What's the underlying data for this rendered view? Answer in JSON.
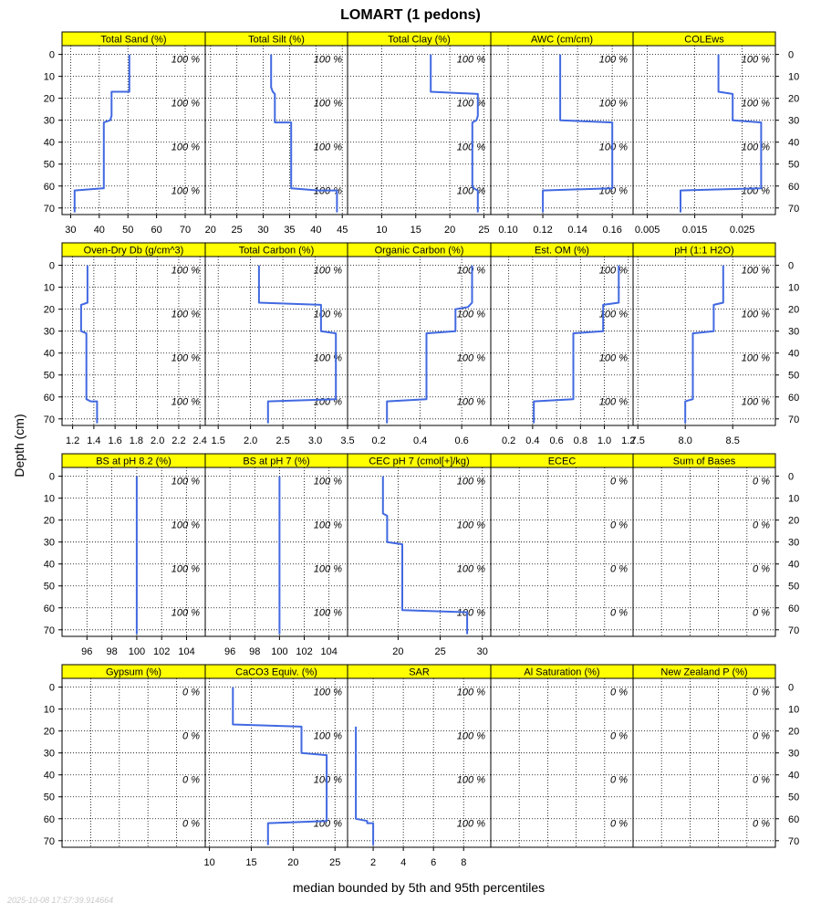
{
  "title": "LOMART (1 pedons)",
  "xlabel": "median bounded by 5th and 95th percentiles",
  "ylabel": "Depth (cm)",
  "timestamp": "2025-10-08 17:57:39.914664",
  "colors": {
    "strip": "#ffff00",
    "line": "#4169e1",
    "grid": "#000000",
    "text": "#000000",
    "timestamp": "#c8c8c8"
  },
  "chart_data": {
    "type": "line",
    "orientation": "depth profile",
    "y_axis": {
      "label": "Depth (cm)",
      "ticks": [
        0,
        10,
        20,
        30,
        40,
        50,
        60,
        70
      ],
      "range": [
        -4,
        73
      ],
      "reversed": true
    },
    "grid": true,
    "panels": [
      {
        "name": "Total Sand (%)",
        "xlim": [
          27,
          77
        ],
        "xticks": [
          30,
          40,
          50,
          60,
          70
        ],
        "tick_labels": [
          "30",
          "40",
          "50",
          "60",
          "70"
        ],
        "pct_label": "100 %",
        "pct_depths": [
          2,
          22,
          42,
          62
        ],
        "profile": [
          [
            50.5,
            0
          ],
          [
            50.5,
            17
          ],
          [
            44.3,
            17
          ],
          [
            44.3,
            28
          ],
          [
            43.8,
            30
          ],
          [
            41.6,
            31
          ],
          [
            41.6,
            61
          ],
          [
            41.2,
            61
          ],
          [
            31.4,
            62
          ],
          [
            31.4,
            72
          ]
        ]
      },
      {
        "name": "Total Silt (%)",
        "xlim": [
          19,
          46
        ],
        "xticks": [
          20,
          25,
          30,
          35,
          40,
          45
        ],
        "tick_labels": [
          "20",
          "25",
          "30",
          "35",
          "40",
          "45"
        ],
        "pct_label": "100 %",
        "pct_depths": [
          2,
          22,
          42,
          62
        ],
        "profile": [
          [
            31.5,
            0
          ],
          [
            31.5,
            15
          ],
          [
            31.8,
            17
          ],
          [
            32.2,
            18
          ],
          [
            32.2,
            31
          ],
          [
            35.3,
            31
          ],
          [
            35.3,
            61
          ],
          [
            40.5,
            62
          ],
          [
            44.0,
            62
          ],
          [
            44.0,
            72
          ]
        ]
      },
      {
        "name": "Total Clay (%)",
        "xlim": [
          5,
          26
        ],
        "xticks": [
          10,
          15,
          20,
          25
        ],
        "tick_labels": [
          "10",
          "15",
          "20",
          "25"
        ],
        "pct_label": "100 %",
        "pct_depths": [
          2,
          22,
          42,
          62
        ],
        "profile": [
          [
            17.2,
            0
          ],
          [
            17.2,
            17
          ],
          [
            24.1,
            18
          ],
          [
            24.1,
            28
          ],
          [
            23.9,
            30
          ],
          [
            23.3,
            31
          ],
          [
            23.3,
            60
          ],
          [
            23.5,
            61
          ],
          [
            24.1,
            62
          ],
          [
            24.1,
            72
          ]
        ]
      },
      {
        "name": "AWC (cm/cm)",
        "xlim": [
          0.09,
          0.172
        ],
        "xticks": [
          0.1,
          0.12,
          0.14,
          0.16
        ],
        "tick_labels": [
          "0.10",
          "0.12",
          "0.14",
          "0.16"
        ],
        "pct_label": "100 %",
        "pct_depths": [
          2,
          22,
          42,
          62
        ],
        "profile": [
          [
            0.13,
            0
          ],
          [
            0.13,
            30
          ],
          [
            0.16,
            31
          ],
          [
            0.16,
            61
          ],
          [
            0.12,
            62
          ],
          [
            0.12,
            72
          ]
        ]
      },
      {
        "name": "COLEws",
        "xlim": [
          0.002,
          0.032
        ],
        "xticks": [
          0.005,
          0.015,
          0.025
        ],
        "tick_labels": [
          "0.005",
          "0.015",
          "0.025"
        ],
        "pct_label": "100 %",
        "pct_depths": [
          2,
          22,
          42,
          62
        ],
        "profile": [
          [
            0.02,
            0
          ],
          [
            0.02,
            17
          ],
          [
            0.023,
            18
          ],
          [
            0.023,
            30
          ],
          [
            0.029,
            31
          ],
          [
            0.029,
            61
          ],
          [
            0.012,
            62
          ],
          [
            0.012,
            72
          ]
        ]
      }
    ],
    "panels_row2": [
      {
        "name": "Oven-Dry Db (g/cm^3)",
        "xlim": [
          1.1,
          2.45
        ],
        "xticks": [
          1.2,
          1.4,
          1.6,
          1.8,
          2.0,
          2.2,
          2.4
        ],
        "tick_labels": [
          "1.2",
          "1.4",
          "1.6",
          "1.8",
          "2.0",
          "2.2",
          "2.4"
        ],
        "pct_label": "100 %",
        "pct_depths": [
          2,
          22,
          42,
          62
        ],
        "profile": [
          [
            1.34,
            0
          ],
          [
            1.34,
            17
          ],
          [
            1.28,
            18
          ],
          [
            1.28,
            30
          ],
          [
            1.33,
            31
          ],
          [
            1.33,
            61
          ],
          [
            1.37,
            62
          ],
          [
            1.43,
            62
          ],
          [
            1.43,
            72
          ]
        ]
      },
      {
        "name": "Total Carbon (%)",
        "xlim": [
          1.3,
          3.5
        ],
        "xticks": [
          1.5,
          2.0,
          2.5,
          3.0,
          3.5
        ],
        "tick_labels": [
          "1.5",
          "2.0",
          "2.5",
          "3.0",
          "3.5"
        ],
        "pct_label": "100 %",
        "pct_depths": [
          2,
          22,
          42,
          62
        ],
        "profile": [
          [
            2.13,
            0
          ],
          [
            2.13,
            17
          ],
          [
            3.09,
            18
          ],
          [
            3.09,
            30
          ],
          [
            3.32,
            31
          ],
          [
            3.32,
            61
          ],
          [
            2.27,
            62
          ],
          [
            2.27,
            72
          ]
        ]
      },
      {
        "name": "Organic Carbon (%)",
        "xlim": [
          0.05,
          0.74
        ],
        "xticks": [
          0.2,
          0.4,
          0.6
        ],
        "tick_labels": [
          "0.2",
          "0.4",
          "0.6"
        ],
        "pct_label": "100 %",
        "pct_depths": [
          2,
          22,
          42,
          62
        ],
        "profile": [
          [
            0.65,
            0
          ],
          [
            0.65,
            17
          ],
          [
            0.63,
            19
          ],
          [
            0.57,
            20
          ],
          [
            0.57,
            30
          ],
          [
            0.43,
            31
          ],
          [
            0.43,
            61
          ],
          [
            0.24,
            62
          ],
          [
            0.24,
            72
          ]
        ]
      },
      {
        "name": "Est. OM (%)",
        "xlim": [
          0.05,
          1.24
        ],
        "xticks": [
          0.2,
          0.4,
          0.6,
          0.8,
          1.0,
          1.2
        ],
        "tick_labels": [
          "0.2",
          "0.4",
          "0.6",
          "0.8",
          "1.0",
          "1.2"
        ],
        "pct_label": "100 %",
        "pct_depths": [
          2,
          22,
          42,
          62
        ],
        "profile": [
          [
            1.12,
            0
          ],
          [
            1.12,
            17
          ],
          [
            0.99,
            18
          ],
          [
            0.99,
            30
          ],
          [
            0.74,
            31
          ],
          [
            0.74,
            61
          ],
          [
            0.41,
            62
          ],
          [
            0.41,
            72
          ]
        ]
      },
      {
        "name": "pH (1:1 H2O)",
        "xlim": [
          7.45,
          8.95
        ],
        "xticks": [
          7.5,
          8.0,
          8.5
        ],
        "tick_labels": [
          "7.5",
          "8.0",
          "8.5"
        ],
        "pct_label": "100 %",
        "pct_depths": [
          2,
          22,
          42,
          62
        ],
        "profile": [
          [
            8.4,
            0
          ],
          [
            8.4,
            17
          ],
          [
            8.3,
            18
          ],
          [
            8.3,
            30
          ],
          [
            8.08,
            31
          ],
          [
            8.08,
            61
          ],
          [
            8.0,
            62
          ],
          [
            8.0,
            72
          ]
        ]
      }
    ],
    "panels_row3": [
      {
        "name": "BS at pH 8.2 (%)",
        "xlim": [
          94,
          105.5
        ],
        "xticks": [
          96,
          98,
          100,
          102,
          104
        ],
        "tick_labels": [
          "96",
          "98",
          "100",
          "102",
          "104"
        ],
        "pct_label": "100 %",
        "pct_depths": [
          2,
          22,
          42,
          62
        ],
        "profile": [
          [
            100,
            0
          ],
          [
            100,
            72
          ]
        ]
      },
      {
        "name": "BS at pH 7 (%)",
        "xlim": [
          94,
          105.5
        ],
        "xticks": [
          96,
          98,
          100,
          102,
          104
        ],
        "tick_labels": [
          "96",
          "98",
          "100",
          "102",
          "104"
        ],
        "pct_label": "100 %",
        "pct_depths": [
          2,
          22,
          42,
          62
        ],
        "profile": [
          [
            100,
            0
          ],
          [
            100,
            72
          ]
        ]
      },
      {
        "name": "CEC pH 7 (cmol[+]/kg)",
        "xlim": [
          14,
          31
        ],
        "xticks": [
          20,
          25,
          30
        ],
        "tick_labels": [
          "20",
          "25",
          "30"
        ],
        "pct_label": "100 %",
        "pct_depths": [
          2,
          22,
          42,
          62
        ],
        "profile": [
          [
            18.2,
            0
          ],
          [
            18.2,
            17
          ],
          [
            18.7,
            18
          ],
          [
            18.7,
            30
          ],
          [
            20.5,
            31
          ],
          [
            20.5,
            61
          ],
          [
            28.2,
            62
          ],
          [
            28.2,
            72
          ]
        ]
      },
      {
        "name": "ECEC",
        "xlim": [
          0,
          1
        ],
        "xticks": [],
        "tick_labels": [],
        "pct_label": "0 %",
        "pct_depths": [
          2,
          22,
          42,
          62
        ],
        "profile": []
      },
      {
        "name": "Sum of Bases",
        "xlim": [
          0,
          1
        ],
        "xticks": [],
        "tick_labels": [],
        "pct_label": "0 %",
        "pct_depths": [
          2,
          22,
          42,
          62
        ],
        "profile": []
      }
    ],
    "panels_row4": [
      {
        "name": "Gypsum (%)",
        "xlim": [
          0,
          1
        ],
        "xticks": [],
        "tick_labels": [],
        "pct_label": "0 %",
        "pct_depths": [
          2,
          22,
          42,
          62
        ],
        "profile": []
      },
      {
        "name": "CaCO3 Equiv. (%)",
        "xlim": [
          9.5,
          26.5
        ],
        "xticks": [
          10,
          15,
          20,
          25
        ],
        "tick_labels": [
          "10",
          "15",
          "20",
          "25"
        ],
        "pct_label": "100 %",
        "pct_depths": [
          2,
          22,
          42,
          62
        ],
        "profile": [
          [
            12.8,
            0
          ],
          [
            12.8,
            17
          ],
          [
            21.0,
            18
          ],
          [
            21.0,
            30
          ],
          [
            24.0,
            31
          ],
          [
            24.0,
            61
          ],
          [
            17.0,
            62
          ],
          [
            17.0,
            72
          ]
        ]
      },
      {
        "name": "SAR",
        "xlim": [
          0.3,
          9.8
        ],
        "xticks": [
          2,
          4,
          6,
          8
        ],
        "tick_labels": [
          "2",
          "4",
          "6",
          "8"
        ],
        "pct_label": "100 %",
        "pct_depths": [
          2,
          22,
          42,
          62
        ],
        "profile": [
          [
            0.85,
            18
          ],
          [
            0.85,
            60
          ],
          [
            1.6,
            61
          ],
          [
            1.6,
            62
          ],
          [
            2.0,
            62
          ],
          [
            2.0,
            72
          ]
        ]
      },
      {
        "name": "Al Saturation (%)",
        "xlim": [
          0,
          1
        ],
        "xticks": [],
        "tick_labels": [],
        "pct_label": "0 %",
        "pct_depths": [
          2,
          22,
          42,
          62
        ],
        "profile": []
      },
      {
        "name": "New Zealand P (%)",
        "xlim": [
          0,
          1
        ],
        "xticks": [],
        "tick_labels": [],
        "pct_label": "0 %",
        "pct_depths": [
          2,
          22,
          42,
          62
        ],
        "profile": []
      }
    ]
  }
}
